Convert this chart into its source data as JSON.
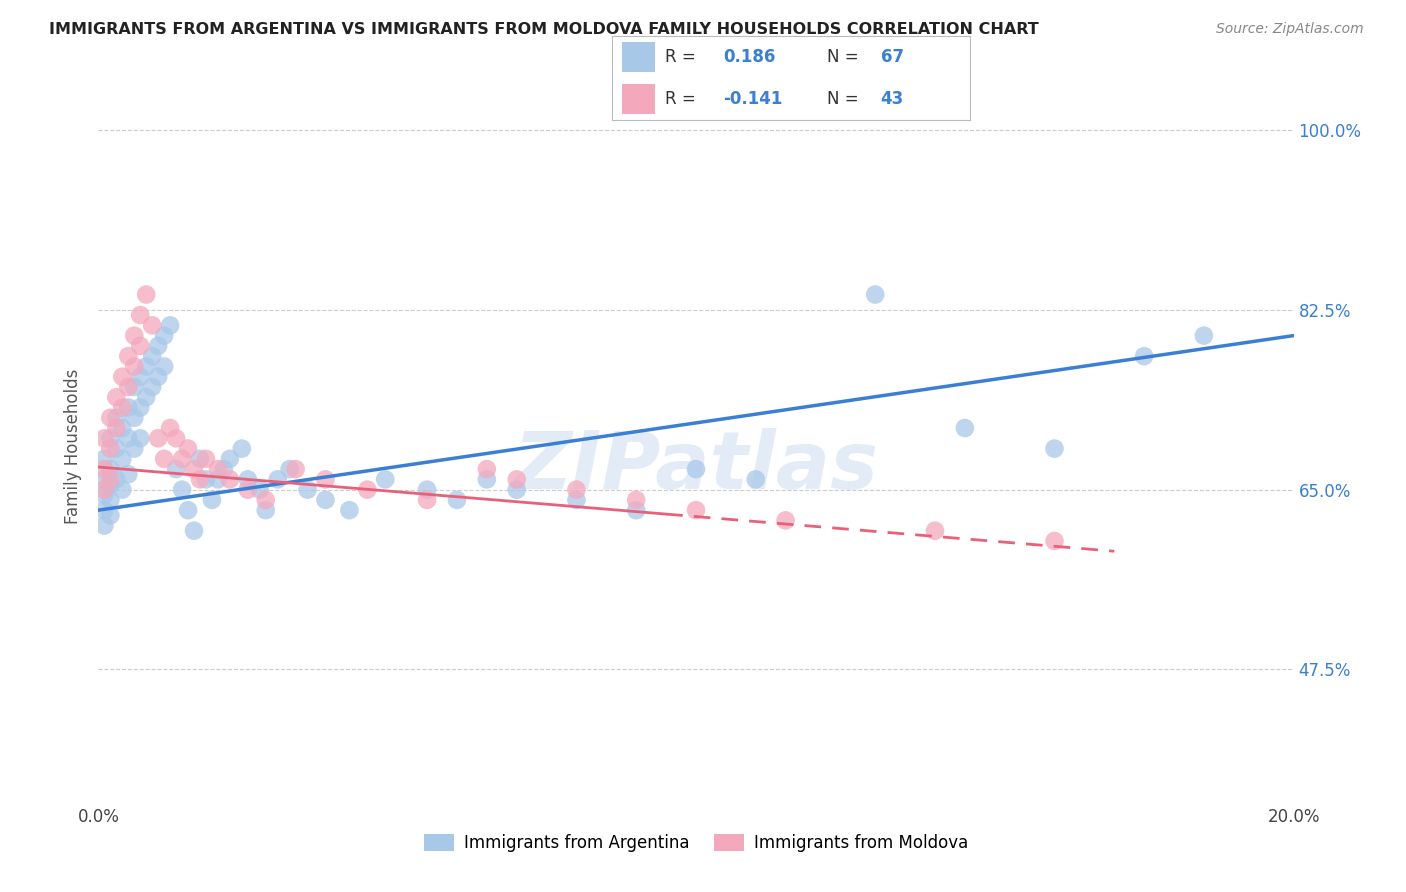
{
  "title": "IMMIGRANTS FROM ARGENTINA VS IMMIGRANTS FROM MOLDOVA FAMILY HOUSEHOLDS CORRELATION CHART",
  "source": "Source: ZipAtlas.com",
  "ylabel": "Family Households",
  "yticks": [
    0.475,
    0.65,
    0.825,
    1.0
  ],
  "ytick_labels": [
    "47.5%",
    "65.0%",
    "82.5%",
    "100.0%"
  ],
  "xlim": [
    0.0,
    0.2
  ],
  "ylim": [
    0.345,
    1.04
  ],
  "argentina_color": "#a8c8e8",
  "moldova_color": "#f4a8bc",
  "argentina_label": "Immigrants from Argentina",
  "moldova_label": "Immigrants from Moldova",
  "trend_argentina_color": "#3a7fd4",
  "trend_moldova_color": "#e8607a",
  "background_color": "#ffffff",
  "grid_color": "#cccccc",
  "argentina_x": [
    0.001,
    0.001,
    0.001,
    0.001,
    0.001,
    0.002,
    0.002,
    0.002,
    0.002,
    0.002,
    0.003,
    0.003,
    0.003,
    0.004,
    0.004,
    0.004,
    0.005,
    0.005,
    0.005,
    0.006,
    0.006,
    0.006,
    0.007,
    0.007,
    0.007,
    0.008,
    0.008,
    0.009,
    0.009,
    0.01,
    0.01,
    0.011,
    0.011,
    0.012,
    0.013,
    0.014,
    0.015,
    0.016,
    0.017,
    0.018,
    0.019,
    0.02,
    0.021,
    0.022,
    0.024,
    0.025,
    0.027,
    0.028,
    0.03,
    0.032,
    0.035,
    0.038,
    0.042,
    0.048,
    0.055,
    0.06,
    0.065,
    0.07,
    0.08,
    0.09,
    0.1,
    0.11,
    0.13,
    0.145,
    0.16,
    0.175,
    0.185
  ],
  "argentina_y": [
    0.68,
    0.66,
    0.645,
    0.63,
    0.615,
    0.7,
    0.67,
    0.655,
    0.64,
    0.625,
    0.72,
    0.69,
    0.66,
    0.71,
    0.68,
    0.65,
    0.73,
    0.7,
    0.665,
    0.75,
    0.72,
    0.69,
    0.76,
    0.73,
    0.7,
    0.77,
    0.74,
    0.78,
    0.75,
    0.79,
    0.76,
    0.8,
    0.77,
    0.81,
    0.67,
    0.65,
    0.63,
    0.61,
    0.68,
    0.66,
    0.64,
    0.66,
    0.67,
    0.68,
    0.69,
    0.66,
    0.65,
    0.63,
    0.66,
    0.67,
    0.65,
    0.64,
    0.63,
    0.66,
    0.65,
    0.64,
    0.66,
    0.65,
    0.64,
    0.63,
    0.67,
    0.66,
    0.84,
    0.71,
    0.69,
    0.78,
    0.8
  ],
  "moldova_x": [
    0.001,
    0.001,
    0.001,
    0.002,
    0.002,
    0.002,
    0.003,
    0.003,
    0.004,
    0.004,
    0.005,
    0.005,
    0.006,
    0.006,
    0.007,
    0.007,
    0.008,
    0.009,
    0.01,
    0.011,
    0.012,
    0.013,
    0.014,
    0.015,
    0.016,
    0.017,
    0.018,
    0.02,
    0.022,
    0.025,
    0.028,
    0.033,
    0.038,
    0.045,
    0.055,
    0.065,
    0.07,
    0.08,
    0.09,
    0.1,
    0.115,
    0.14,
    0.16
  ],
  "moldova_y": [
    0.7,
    0.67,
    0.65,
    0.72,
    0.69,
    0.66,
    0.74,
    0.71,
    0.76,
    0.73,
    0.78,
    0.75,
    0.8,
    0.77,
    0.82,
    0.79,
    0.84,
    0.81,
    0.7,
    0.68,
    0.71,
    0.7,
    0.68,
    0.69,
    0.67,
    0.66,
    0.68,
    0.67,
    0.66,
    0.65,
    0.64,
    0.67,
    0.66,
    0.65,
    0.64,
    0.67,
    0.66,
    0.65,
    0.64,
    0.63,
    0.62,
    0.61,
    0.6
  ],
  "trend_arg_x0": 0.0,
  "trend_arg_y0": 0.63,
  "trend_arg_x1": 0.2,
  "trend_arg_y1": 0.8,
  "trend_mol_x0": 0.0,
  "trend_mol_y0": 0.672,
  "trend_mol_x1": 0.17,
  "trend_mol_y1": 0.59,
  "trend_mol_solid_end": 0.095,
  "watermark_text": "ZIPatlas"
}
